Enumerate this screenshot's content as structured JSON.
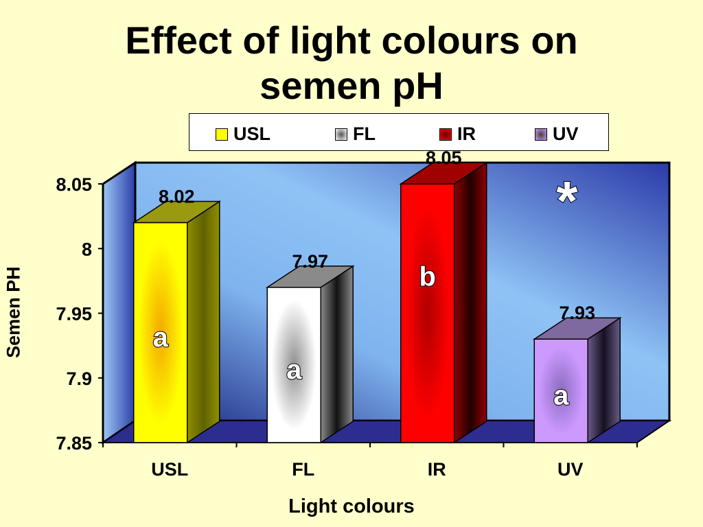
{
  "chart_data": {
    "type": "bar",
    "title_line1": "Effect of light colours on",
    "title_line2": "semen pH",
    "categories": [
      "USL",
      "FL",
      "IR",
      "UV"
    ],
    "values": [
      8.02,
      7.97,
      8.05,
      7.93
    ],
    "value_labels": [
      "8.02",
      "7.97",
      "8.05",
      "7.93"
    ],
    "significance_letters": [
      "a",
      "a",
      "b",
      "a"
    ],
    "annotation": "*",
    "xlabel": "Light colours",
    "ylabel": "Semen PH",
    "ylim": [
      7.85,
      8.05
    ],
    "yticks": [
      "7.85",
      "7.9",
      "7.95",
      "8",
      "8.05"
    ],
    "grid": false,
    "legend_placement": "top",
    "legend": [
      {
        "label": "USL",
        "color": "#FFFF00"
      },
      {
        "label": "FL",
        "color": "#FFFFFF"
      },
      {
        "label": "IR",
        "color": "#FF0000"
      },
      {
        "label": "UV",
        "color": "#CC99FF"
      }
    ],
    "bar_side_colors": [
      "#808000",
      "#707070",
      "#800000",
      "#5A4A7A"
    ]
  }
}
